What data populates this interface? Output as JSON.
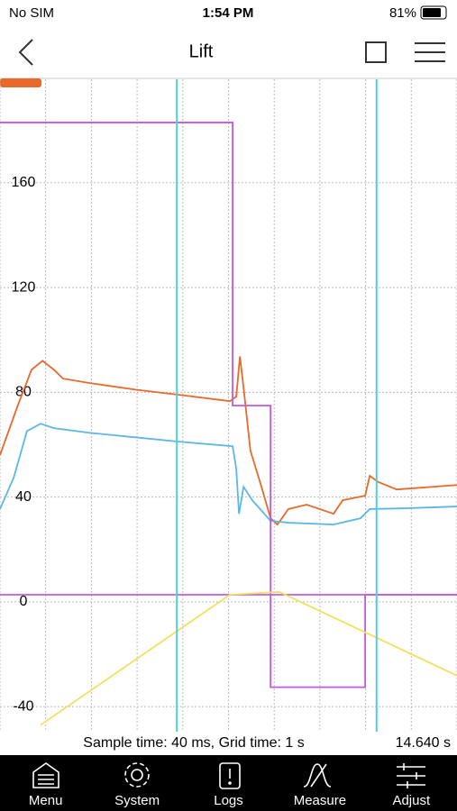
{
  "status_bar": {
    "carrier": "No SIM",
    "time": "1:54 PM",
    "battery": "81%"
  },
  "header": {
    "title": "Lift"
  },
  "chart_data": {
    "type": "line",
    "ylim": [
      -49.6,
      199.5
    ],
    "yticks": [
      -40,
      0,
      40,
      80,
      120,
      160
    ],
    "xlim": [
      0,
      10
    ],
    "grid": true,
    "series": [
      {
        "color": "#e8692a",
        "x": [
          0,
          0.39,
          0.69,
          0.93,
          1.18,
          1.38,
          1.97,
          2.96,
          3.94,
          5.03,
          5.17,
          5.25,
          5.33,
          5.48,
          5.72,
          5.92,
          6.07,
          6.31,
          6.71,
          7.3,
          7.5,
          7.99,
          8.09,
          8.28,
          8.68,
          10
        ],
        "values": [
          56,
          75,
          88.6,
          92,
          88.6,
          85.2,
          83.5,
          81,
          79,
          76.6,
          78.3,
          93.7,
          81.7,
          57.7,
          44,
          31.9,
          29.5,
          35.4,
          37.1,
          33.6,
          38.8,
          40.5,
          48.1,
          45.7,
          42.9,
          44.6
        ]
      },
      {
        "color": "#5bb8e6",
        "x": [
          0,
          0.3,
          0.59,
          0.89,
          1.18,
          1.97,
          2.96,
          3.94,
          5.09,
          5.17,
          5.23,
          5.33,
          5.52,
          5.92,
          6.31,
          7.3,
          7.89,
          8.09,
          8.88,
          10
        ],
        "values": [
          35.4,
          47.4,
          65.2,
          68,
          66.3,
          64.5,
          62.8,
          61.1,
          59.4,
          50.8,
          33.6,
          43.9,
          38.8,
          30.9,
          30.2,
          29.5,
          31.9,
          35.4,
          35.7,
          36.4
        ]
      },
      {
        "color": "#c05be0",
        "x": [
          0,
          5.09,
          5.09,
          5.92,
          5.92,
          7.99,
          7.99,
          10
        ],
        "values": [
          183,
          183,
          74.9,
          74.9,
          -32.6,
          -32.6,
          2.7,
          2.7
        ]
      },
      {
        "color": "#c05be0",
        "x": [
          0,
          10
        ],
        "values": [
          2.7,
          2.7
        ]
      },
      {
        "color": "#f2e060",
        "x": [
          0.89,
          5.03,
          6.11,
          10
        ],
        "values": [
          -47,
          2.7,
          3.8,
          -28.2
        ]
      }
    ],
    "cursors": [
      3.87,
      8.24
    ],
    "cursor_color": "#4fd0d8"
  },
  "footer": {
    "info": "Sample time: 40 ms, Grid time: 1 s",
    "time": "14.640 s"
  },
  "tabs": [
    "Menu",
    "System",
    "Logs",
    "Measure",
    "Adjust"
  ]
}
